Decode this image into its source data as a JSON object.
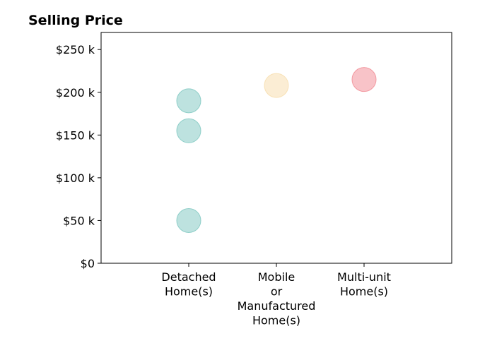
{
  "chart_data": {
    "type": "scatter",
    "title": "Selling Price",
    "xlabel": "",
    "ylabel": "",
    "categories": [
      [
        "Detached",
        "Home(s)"
      ],
      [
        "Mobile",
        "or",
        "Manufactured",
        "Home(s)"
      ],
      [
        "Multi-unit",
        "Home(s)"
      ]
    ],
    "xlim": [
      0,
      4
    ],
    "ylim": [
      0,
      270000
    ],
    "yticks": [
      0,
      50000,
      100000,
      150000,
      200000,
      250000
    ],
    "ytick_labels": [
      "$0",
      "$50 k",
      "$100 k",
      "$150 k",
      "$200 k",
      "$250 k"
    ],
    "grid": false,
    "legend": "none",
    "points": [
      {
        "category": 1,
        "value": 190000,
        "color": "#86cbc4"
      },
      {
        "category": 1,
        "value": 155000,
        "color": "#86cbc4"
      },
      {
        "category": 1,
        "value": 50000,
        "color": "#86cbc4"
      },
      {
        "category": 2,
        "value": 208000,
        "color": "#f7dfb0"
      },
      {
        "category": 3,
        "value": 215000,
        "color": "#f2929a"
      }
    ],
    "marker_opacity": 0.55
  }
}
